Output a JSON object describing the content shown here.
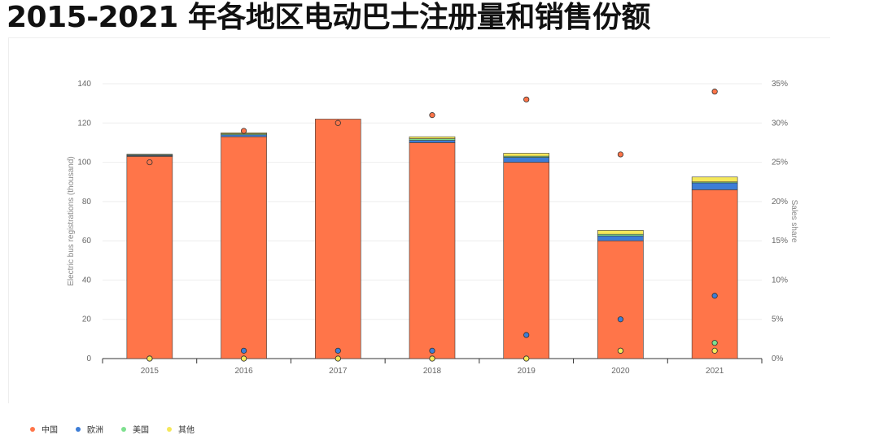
{
  "page": {
    "title": "2015-2021 年各地区电动巴士注册量和销售份额"
  },
  "chart_data": {
    "type": "bar",
    "title": "2015-2021 年各地区电动巴士注册量和销售份额",
    "categories": [
      "2015",
      "2016",
      "2017",
      "2018",
      "2019",
      "2020",
      "2021"
    ],
    "ylabel": "Electric bus registrations (thousand)",
    "y2label": "Sales share",
    "ylim": [
      0,
      140
    ],
    "y2lim": [
      0,
      35
    ],
    "yticks": [
      "0",
      "20",
      "40",
      "60",
      "80",
      "100",
      "120",
      "140"
    ],
    "y2ticks": [
      "0%",
      "5%",
      "10%",
      "15%",
      "20%",
      "25%",
      "30%",
      "35%"
    ],
    "grid": true,
    "legend_position": "bottom-left",
    "series": [
      {
        "name": "中国",
        "color": "#ff7549",
        "stack_values": [
          103,
          113,
          122,
          110,
          100,
          60,
          86
        ],
        "share_values": [
          25,
          29,
          30,
          31,
          33,
          26,
          34
        ]
      },
      {
        "name": "欧洲",
        "color": "#3d7dd6",
        "stack_values": [
          0.4,
          1.0,
          0,
          1.2,
          2.5,
          2.5,
          3.5
        ],
        "share_values": [
          0,
          1,
          1,
          1,
          3,
          5,
          8
        ]
      },
      {
        "name": "美国",
        "color": "#7ee08f",
        "stack_values": [
          0.4,
          0.5,
          0,
          0.8,
          0.6,
          0.8,
          0.5
        ],
        "share_values": [
          0,
          0,
          0,
          0,
          0,
          1,
          2
        ]
      },
      {
        "name": "其他",
        "color": "#f5e85a",
        "stack_values": [
          0.3,
          0.5,
          0,
          1.0,
          1.5,
          2.0,
          2.5
        ],
        "share_values": [
          0,
          0,
          0,
          0,
          0,
          1,
          1
        ]
      }
    ]
  }
}
